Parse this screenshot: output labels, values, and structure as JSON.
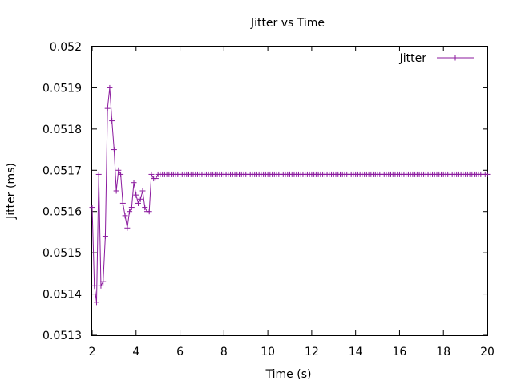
{
  "chart_data": {
    "type": "line",
    "title": "Jitter vs Time",
    "xlabel": "Time (s)",
    "ylabel": "Jitter (ms)",
    "xlim": [
      2,
      20
    ],
    "ylim": [
      0.0513,
      0.052
    ],
    "x_ticks": [
      2,
      4,
      6,
      8,
      10,
      12,
      14,
      16,
      18,
      20
    ],
    "x_tick_labels": [
      "2",
      "4",
      "6",
      "8",
      "10",
      "12",
      "14",
      "16",
      "18",
      "20"
    ],
    "y_ticks": [
      0.0513,
      0.0514,
      0.0515,
      0.0516,
      0.0517,
      0.0518,
      0.0519,
      0.052
    ],
    "y_tick_labels": [
      "0.0513",
      "0.0514",
      "0.0515",
      "0.0516",
      "0.0517",
      "0.0518",
      "0.0519",
      "0.052"
    ],
    "grid": false,
    "legend_position": "top-right",
    "color": "#8b1a9e",
    "series": [
      {
        "name": "Jitter",
        "x": [
          2.0,
          2.1,
          2.2,
          2.3,
          2.4,
          2.5,
          2.6,
          2.7,
          2.8,
          2.9,
          3.0,
          3.1,
          3.2,
          3.3,
          3.4,
          3.5,
          3.6,
          3.7,
          3.8,
          3.9,
          4.0,
          4.1,
          4.2,
          4.3,
          4.4,
          4.5,
          4.6,
          4.7,
          4.8,
          4.9,
          5.0
        ],
        "values": [
          0.05161,
          0.05142,
          0.05138,
          0.05169,
          0.05142,
          0.05143,
          0.05154,
          0.05185,
          0.0519,
          0.05182,
          0.05175,
          0.05165,
          0.0517,
          0.05169,
          0.05162,
          0.05159,
          0.05156,
          0.0516,
          0.05161,
          0.05167,
          0.05164,
          0.05162,
          0.05163,
          0.05165,
          0.05161,
          0.0516,
          0.0516,
          0.05169,
          0.05168,
          0.05168,
          0.05169
        ],
        "steady_from": 5.0,
        "steady_to": 20.0,
        "steady_step": 0.1,
        "steady_value": 0.05169
      }
    ]
  }
}
